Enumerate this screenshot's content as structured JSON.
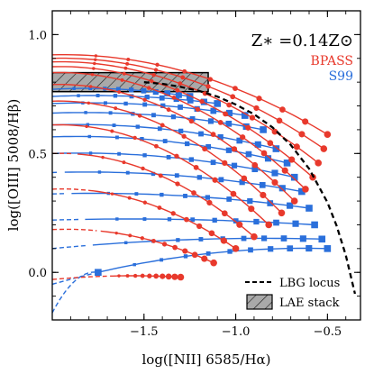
{
  "chart_data": {
    "type": "line",
    "title": "",
    "xlabel": "log([NII] 6585/Hα)",
    "ylabel": "log([OIII] 5008/Hβ)",
    "xlim": [
      -2.0,
      -0.32
    ],
    "ylim": [
      -0.2,
      1.1
    ],
    "xticks": [
      -1.5,
      -1.0,
      -0.5
    ],
    "xtick_labels": [
      "−1.5",
      "−1.0",
      "−0.5"
    ],
    "yticks": [
      0.0,
      0.5,
      1.0
    ],
    "ytick_labels": [
      "0.0",
      "0.5",
      "1.0"
    ],
    "grid": false,
    "metallicity_label": "Z∗ =0.14Z⊙",
    "model_labels": {
      "bpass": "BPASS",
      "s99": "S99"
    },
    "colors": {
      "bpass": "#e8392c",
      "s99": "#2a6fdb",
      "locus": "#000000",
      "stack_fill": "#a9a9a9"
    },
    "legend": {
      "placement": "bottom-right",
      "entries": [
        {
          "label": "LBG locus",
          "style": "dashed-line"
        },
        {
          "label": "LAE stack",
          "style": "hatched-box"
        }
      ]
    },
    "lae_stack": {
      "x": [
        -2.0,
        -1.15
      ],
      "y": [
        0.76,
        0.84
      ]
    },
    "lbg_locus": {
      "x": [
        -1.5,
        -1.4,
        -1.3,
        -1.2,
        -1.1,
        -1.0,
        -0.9,
        -0.8,
        -0.7,
        -0.6,
        -0.5,
        -0.45,
        -0.4,
        -0.35
      ],
      "y": [
        0.8,
        0.793,
        0.78,
        0.763,
        0.739,
        0.706,
        0.665,
        0.61,
        0.536,
        0.436,
        0.294,
        0.196,
        0.072,
        -0.09
      ]
    },
    "bpass_tracks": [
      {
        "x0": -2.0,
        "y0": 0.915,
        "x1": -0.5,
        "y1": 0.58,
        "solid_from": -2.0
      },
      {
        "x0": -2.0,
        "y0": 0.9,
        "x1": -0.52,
        "y1": 0.52,
        "solid_from": -2.0
      },
      {
        "x0": -2.0,
        "y0": 0.885,
        "x1": -0.55,
        "y1": 0.46,
        "solid_from": -2.0
      },
      {
        "x0": -2.0,
        "y0": 0.865,
        "x1": -0.58,
        "y1": 0.4,
        "solid_from": -2.0
      },
      {
        "x0": -2.0,
        "y0": 0.84,
        "x1": -0.62,
        "y1": 0.35,
        "solid_from": -2.0
      },
      {
        "x0": -2.0,
        "y0": 0.79,
        "x1": -0.68,
        "y1": 0.3,
        "solid_from": -2.0
      },
      {
        "x0": -2.0,
        "y0": 0.72,
        "x1": -0.75,
        "y1": 0.25,
        "solid_from": -2.0
      },
      {
        "x0": -2.0,
        "y0": 0.62,
        "x1": -0.82,
        "y1": 0.2,
        "solid_from": -2.0
      },
      {
        "x0": -2.0,
        "y0": 0.5,
        "x1": -0.9,
        "y1": 0.15,
        "solid_from": -1.88
      },
      {
        "x0": -2.0,
        "y0": 0.35,
        "x1": -1.0,
        "y1": 0.1,
        "solid_from": -1.8
      },
      {
        "x0": -2.0,
        "y0": 0.18,
        "x1": -1.12,
        "y1": 0.04,
        "solid_from": -1.75
      },
      {
        "x0": -2.0,
        "y0": -0.03,
        "x1": -1.3,
        "y1": -0.02,
        "solid_from": -1.7
      }
    ],
    "s99_tracks": [
      {
        "x0": -2.0,
        "y0": 0.77,
        "x1": -1.25,
        "y1": 0.74,
        "solid_from": -2.0
      },
      {
        "x0": -2.0,
        "y0": 0.74,
        "x1": -1.1,
        "y1": 0.71,
        "solid_from": -2.0
      },
      {
        "x0": -2.0,
        "y0": 0.71,
        "x1": -0.95,
        "y1": 0.66,
        "solid_from": -2.0
      },
      {
        "x0": -2.0,
        "y0": 0.67,
        "x1": -0.85,
        "y1": 0.6,
        "solid_from": -2.0
      },
      {
        "x0": -2.0,
        "y0": 0.62,
        "x1": -0.78,
        "y1": 0.52,
        "solid_from": -2.0
      },
      {
        "x0": -2.0,
        "y0": 0.57,
        "x1": -0.72,
        "y1": 0.46,
        "solid_from": -2.0
      },
      {
        "x0": -2.0,
        "y0": 0.5,
        "x1": -0.68,
        "y1": 0.4,
        "solid_from": -2.0
      },
      {
        "x0": -2.0,
        "y0": 0.42,
        "x1": -0.64,
        "y1": 0.34,
        "solid_from": -1.95
      },
      {
        "x0": -2.0,
        "y0": 0.33,
        "x1": -0.6,
        "y1": 0.27,
        "solid_from": -1.9
      },
      {
        "x0": -2.0,
        "y0": 0.22,
        "x1": -0.57,
        "y1": 0.2,
        "solid_from": -1.85
      },
      {
        "x0": -2.0,
        "y0": 0.1,
        "x1": -0.53,
        "y1": 0.14,
        "solid_from": -1.8
      },
      {
        "x0": -2.0,
        "y0": -0.05,
        "x1": -0.5,
        "y1": 0.1,
        "solid_from": -1.75
      },
      {
        "x0": -2.0,
        "y0": -0.17,
        "x1": -1.75,
        "y1": 0.0,
        "solid_from": -1.75
      }
    ]
  }
}
